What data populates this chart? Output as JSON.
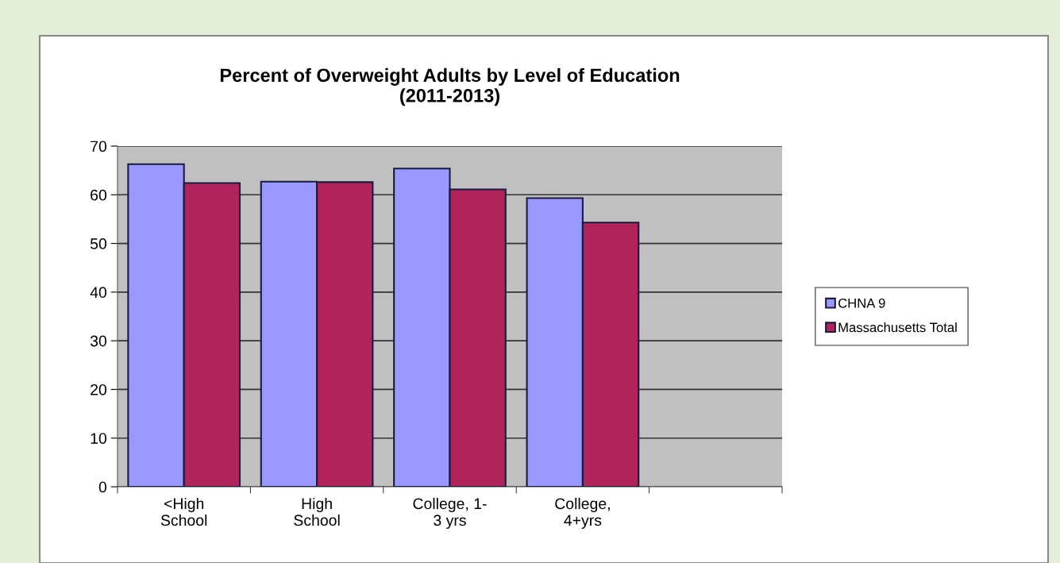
{
  "chart_data": {
    "type": "bar",
    "title": "Percent of Overweight Adults by Level of Education\n(2011-2013)",
    "categories": [
      "<High\nSchool",
      "High\nSchool",
      "College, 1-\n3 yrs",
      "College,\n4+yrs",
      null
    ],
    "series": [
      {
        "name": "CHNA 9",
        "color": "#9999ff",
        "values": [
          66.3,
          62.7,
          65.4,
          59.3,
          null
        ]
      },
      {
        "name": "Massachusetts Total",
        "color": "#b0245a",
        "values": [
          62.4,
          62.6,
          61.1,
          54.3,
          null
        ]
      }
    ],
    "ylim": [
      0,
      70
    ],
    "yticks": [
      0,
      10,
      20,
      30,
      40,
      50,
      60,
      70
    ],
    "grid": "y",
    "legend": "right"
  }
}
